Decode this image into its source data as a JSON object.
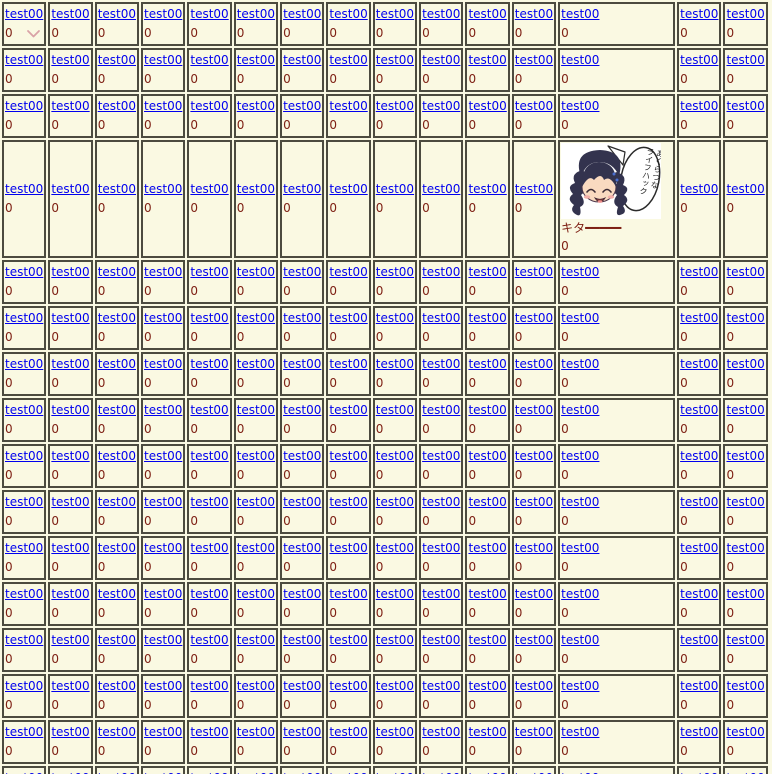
{
  "page": {
    "background_color": "#FAF9E2",
    "cell_border_color": "#4C4B3F",
    "link_color": "#0000EE",
    "count_color": "#7E2014",
    "chevron_color": "#D9A2A6"
  },
  "table": {
    "columns": 15,
    "rows": 16,
    "wide_column": 13,
    "tall_row": 4,
    "cell": {
      "link_label": "test00",
      "count_label": "0"
    },
    "special_cell": {
      "row": 4,
      "column": 13,
      "image_name": "anime-girl-closed-eyes-with-speech-bubble",
      "bubble_line1": "あくらつな",
      "bubble_line2": "ライフハック",
      "kita_label": "キタ━━━━━",
      "count_label": "0"
    }
  }
}
